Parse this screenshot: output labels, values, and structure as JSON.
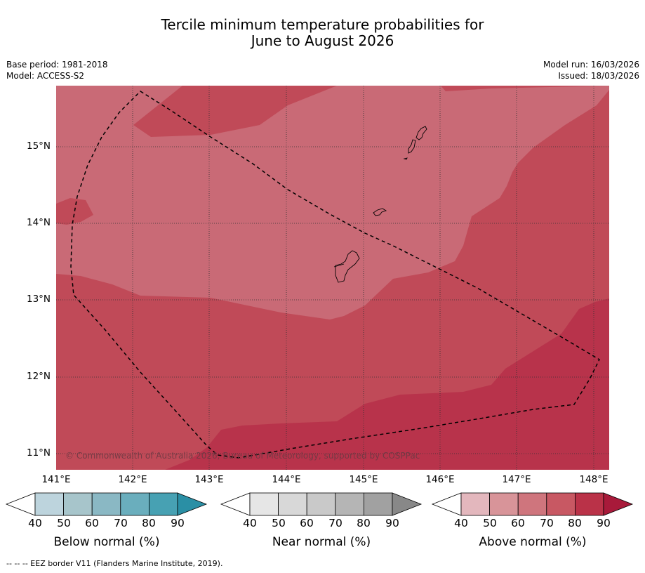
{
  "title": {
    "line1": "Tercile minimum temperature probabilities for",
    "line2": "June to August 2026"
  },
  "meta": {
    "base_period": "Base period: 1981-2018",
    "model": "Model: ACCESS-S2",
    "model_run": "Model run: 16/03/2026",
    "issued": "Issued: 18/03/2026"
  },
  "axes": {
    "lat_labels": [
      "15°N",
      "14°N",
      "13°N",
      "12°N",
      "11°N"
    ],
    "lon_labels": [
      "141°E",
      "142°E",
      "143°E",
      "144°E",
      "145°E",
      "146°E",
      "147°E",
      "148°E"
    ]
  },
  "copyright": "© Commonwealth of Australia 2026, Bureau of Meteorology, supported by COSPPac",
  "colorbars": [
    {
      "label": "Below normal (%)",
      "ticks": [
        "40",
        "50",
        "60",
        "70",
        "80",
        "90"
      ],
      "colors": [
        "#bdd4dd",
        "#a7c5cb",
        "#8ab8c4",
        "#6aaebd",
        "#47a1b3",
        "#2a8fa5"
      ]
    },
    {
      "label": "Near normal (%)",
      "ticks": [
        "40",
        "50",
        "60",
        "70",
        "80",
        "90"
      ],
      "colors": [
        "#e6e6e6",
        "#d8d8d8",
        "#c9c9c9",
        "#b5b5b5",
        "#a1a1a1",
        "#888888"
      ]
    },
    {
      "label": "Above normal (%)",
      "ticks": [
        "40",
        "50",
        "60",
        "70",
        "80",
        "90"
      ],
      "colors": [
        "#e3b7bd",
        "#d89499",
        "#cf757d",
        "#c85863",
        "#ba3248",
        "#a81a3a"
      ]
    }
  ],
  "legend_note": "--  --  -- EEZ border V11 (Flanders Marine Institute, 2019).",
  "colors": {
    "prob_60_70": "#c96a76",
    "prob_70_80": "#c04a58",
    "prob_80_90": "#b8334b"
  }
}
